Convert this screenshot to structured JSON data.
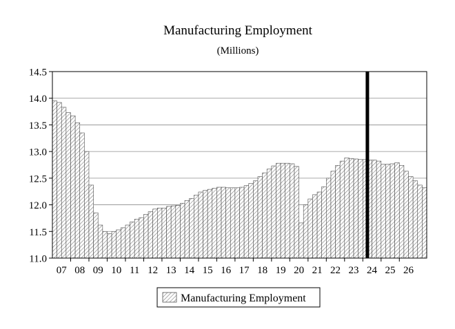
{
  "chart_data": {
    "type": "bar",
    "title": "Manufacturing Employment",
    "subtitle": "(Millions)",
    "xlabel": "",
    "ylabel": "",
    "ylim": [
      11.0,
      14.5
    ],
    "y_ticks": [
      "11.0",
      "11.5",
      "12.0",
      "12.5",
      "13.0",
      "13.5",
      "14.0",
      "14.5"
    ],
    "x_ticks": [
      "07",
      "08",
      "09",
      "10",
      "11",
      "12",
      "13",
      "14",
      "15",
      "16",
      "17",
      "18",
      "19",
      "20",
      "21",
      "22",
      "23",
      "24",
      "25",
      "26"
    ],
    "grid": true,
    "legend_position": "bottom-center",
    "forecast_marker_after_quarter": "24Q1",
    "series": [
      {
        "name": "Manufacturing Employment",
        "color": "#d8d8d8",
        "values": [
          13.95,
          13.92,
          13.83,
          13.73,
          13.67,
          13.54,
          13.35,
          13.0,
          12.37,
          11.85,
          11.62,
          11.5,
          11.46,
          11.5,
          11.53,
          11.57,
          11.62,
          11.68,
          11.73,
          11.76,
          11.82,
          11.87,
          11.92,
          11.94,
          11.94,
          11.97,
          11.98,
          11.99,
          12.03,
          12.08,
          12.12,
          12.18,
          12.24,
          12.27,
          12.29,
          12.31,
          12.33,
          12.33,
          12.32,
          12.32,
          12.32,
          12.33,
          12.36,
          12.4,
          12.45,
          12.53,
          12.6,
          12.67,
          12.73,
          12.78,
          12.78,
          12.78,
          12.77,
          12.72,
          11.66,
          12.0,
          12.11,
          12.19,
          12.24,
          12.34,
          12.5,
          12.63,
          12.74,
          12.82,
          12.88,
          12.87,
          12.86,
          12.85,
          12.85,
          12.84,
          12.84,
          12.82,
          12.76,
          12.76,
          12.77,
          12.79,
          12.74,
          12.63,
          12.53,
          12.45,
          12.37,
          12.32
        ]
      }
    ]
  }
}
